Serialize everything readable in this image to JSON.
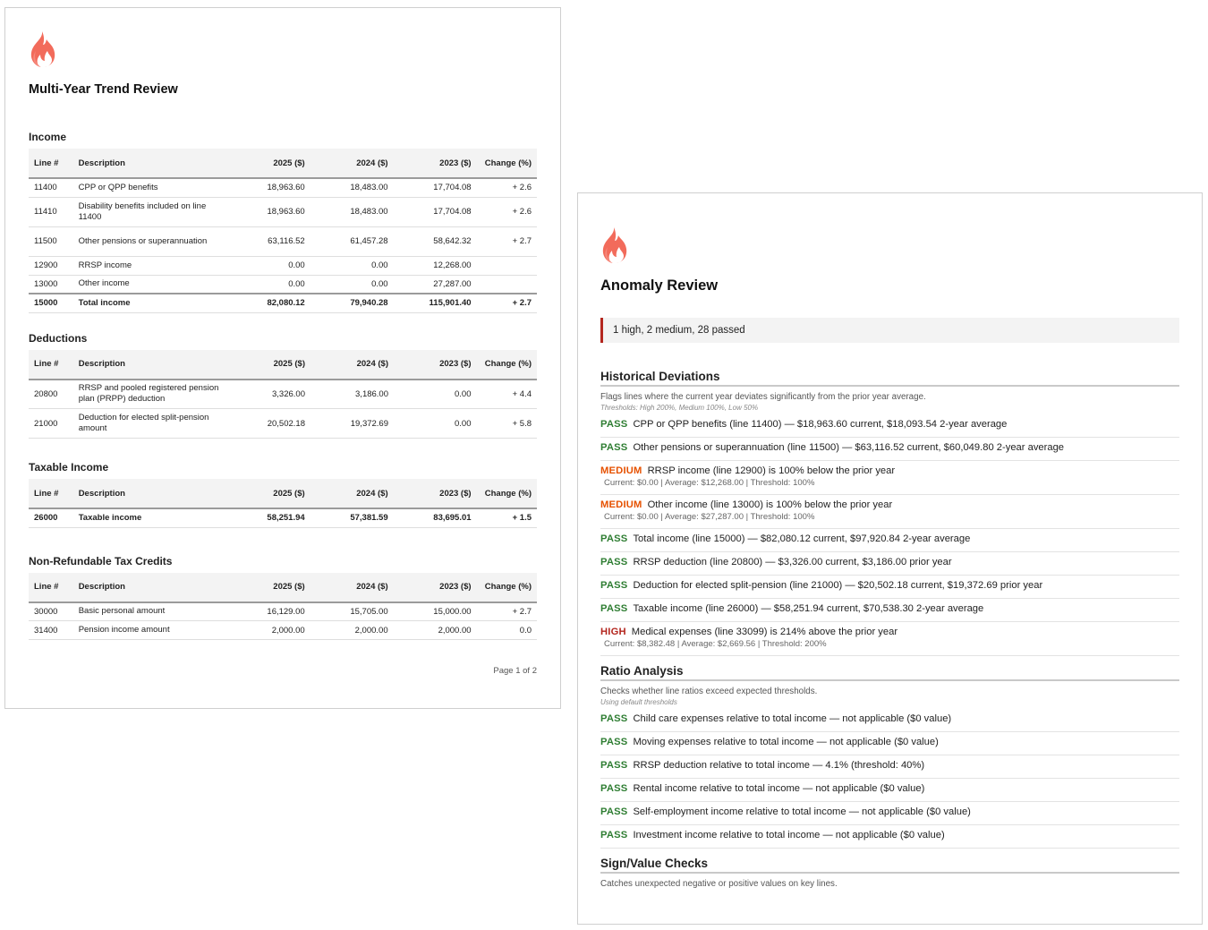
{
  "trend_page": {
    "title": "Multi-Year Trend Review",
    "icon": "flame-icon",
    "columns": [
      "Line #",
      "Description",
      "2025 ($)",
      "2024 ($)",
      "2023 ($)",
      "Change (%)"
    ],
    "sections": [
      {
        "title": "Income",
        "rows": [
          {
            "line": "11400",
            "desc": "CPP or QPP benefits",
            "y2025": "18,963.60",
            "y2024": "18,483.00",
            "y2023": "17,704.08",
            "change": "+ 2.6"
          },
          {
            "line": "11410",
            "desc": "Disability benefits included on line 11400",
            "y2025": "18,963.60",
            "y2024": "18,483.00",
            "y2023": "17,704.08",
            "change": "+ 2.6"
          },
          {
            "line": "11500",
            "desc": "Other pensions or superannuation",
            "y2025": "63,116.52",
            "y2024": "61,457.28",
            "y2023": "58,642.32",
            "change": "+ 2.7"
          },
          {
            "line": "12900",
            "desc": "RRSP income",
            "y2025": "0.00",
            "y2024": "0.00",
            "y2023": "12,268.00",
            "change": ""
          },
          {
            "line": "13000",
            "desc": "Other income",
            "y2025": "0.00",
            "y2024": "0.00",
            "y2023": "27,287.00",
            "change": ""
          }
        ],
        "total": {
          "line": "15000",
          "desc": "Total income",
          "y2025": "82,080.12",
          "y2024": "79,940.28",
          "y2023": "115,901.40",
          "change": "+ 2.7"
        }
      },
      {
        "title": "Deductions",
        "rows": [
          {
            "line": "20800",
            "desc": "RRSP and pooled registered pension plan (PRPP) deduction",
            "y2025": "3,326.00",
            "y2024": "3,186.00",
            "y2023": "0.00",
            "change": "+ 4.4"
          },
          {
            "line": "21000",
            "desc": "Deduction for elected split-pension amount",
            "y2025": "20,502.18",
            "y2024": "19,372.69",
            "y2023": "0.00",
            "change": "+ 5.8"
          }
        ]
      },
      {
        "title": "Taxable Income",
        "rows": [],
        "total": {
          "line": "26000",
          "desc": "Taxable income",
          "y2025": "58,251.94",
          "y2024": "57,381.59",
          "y2023": "83,695.01",
          "change": "+ 1.5"
        }
      },
      {
        "title": "Non-Refundable Tax Credits",
        "rows": [
          {
            "line": "30000",
            "desc": "Basic personal amount",
            "y2025": "16,129.00",
            "y2024": "15,705.00",
            "y2023": "15,000.00",
            "change": "+ 2.7"
          },
          {
            "line": "31400",
            "desc": "Pension income amount",
            "y2025": "2,000.00",
            "y2024": "2,000.00",
            "y2023": "2,000.00",
            "change": "0.0"
          }
        ]
      }
    ],
    "footer": "Page 1 of 2"
  },
  "anomaly_page": {
    "title": "Anomaly Review",
    "icon": "flame-icon",
    "summary": "1 high, 2 medium, 28 passed",
    "colors": {
      "pass": "#2e7d32",
      "medium": "#e65100",
      "high": "#b3261e",
      "flame": "#f26b5b"
    },
    "sections": [
      {
        "title": "Historical Deviations",
        "description": "Flags lines where the current year deviates significantly from the prior year average.",
        "subnote": "Thresholds: High  200%, Medium  100%, Low  50%",
        "checks": [
          {
            "status": "PASS",
            "level": "pass",
            "text": "CPP or QPP benefits (line 11400) — $18,963.60 current, $18,093.54 2-year average",
            "detail": ""
          },
          {
            "status": "PASS",
            "level": "pass",
            "text": "Other pensions or superannuation (line 11500) — $63,116.52 current, $60,049.80 2-year average",
            "detail": ""
          },
          {
            "status": "MEDIUM",
            "level": "medium",
            "text": "RRSP income (line 12900) is 100% below the prior year",
            "detail": "Current: $0.00 | Average: $12,268.00 | Threshold: 100%"
          },
          {
            "status": "MEDIUM",
            "level": "medium",
            "text": "Other income (line 13000) is 100% below the prior year",
            "detail": "Current: $0.00 | Average: $27,287.00 | Threshold: 100%"
          },
          {
            "status": "PASS",
            "level": "pass",
            "text": "Total income (line 15000) — $82,080.12 current, $97,920.84 2-year average",
            "detail": ""
          },
          {
            "status": "PASS",
            "level": "pass",
            "text": "RRSP deduction (line 20800) — $3,326.00 current, $3,186.00 prior year",
            "detail": ""
          },
          {
            "status": "PASS",
            "level": "pass",
            "text": "Deduction for elected split-pension (line 21000) — $20,502.18 current, $19,372.69 prior year",
            "detail": ""
          },
          {
            "status": "PASS",
            "level": "pass",
            "text": "Taxable income (line 26000) — $58,251.94 current, $70,538.30 2-year average",
            "detail": ""
          },
          {
            "status": "HIGH",
            "level": "high",
            "text": "Medical expenses (line 33099) is 214% above the prior year",
            "detail": "Current: $8,382.48 | Average: $2,669.56 | Threshold: 200%"
          }
        ]
      },
      {
        "title": "Ratio Analysis",
        "description": "Checks whether line ratios exceed expected thresholds.",
        "subnote": "Using default thresholds",
        "checks": [
          {
            "status": "PASS",
            "level": "pass",
            "text": "Child care expenses relative to total income — not applicable ($0 value)",
            "detail": ""
          },
          {
            "status": "PASS",
            "level": "pass",
            "text": "Moving expenses relative to total income — not applicable ($0 value)",
            "detail": ""
          },
          {
            "status": "PASS",
            "level": "pass",
            "text": "RRSP deduction relative to total income — 4.1% (threshold: 40%)",
            "detail": ""
          },
          {
            "status": "PASS",
            "level": "pass",
            "text": "Rental income relative to total income — not applicable ($0 value)",
            "detail": ""
          },
          {
            "status": "PASS",
            "level": "pass",
            "text": "Self-employment income relative to total income — not applicable ($0 value)",
            "detail": ""
          },
          {
            "status": "PASS",
            "level": "pass",
            "text": "Investment income relative to total income — not applicable ($0 value)",
            "detail": ""
          }
        ]
      },
      {
        "title": "Sign/Value Checks",
        "description": "Catches unexpected negative or positive values on key lines.",
        "subnote": "",
        "checks": []
      }
    ]
  }
}
